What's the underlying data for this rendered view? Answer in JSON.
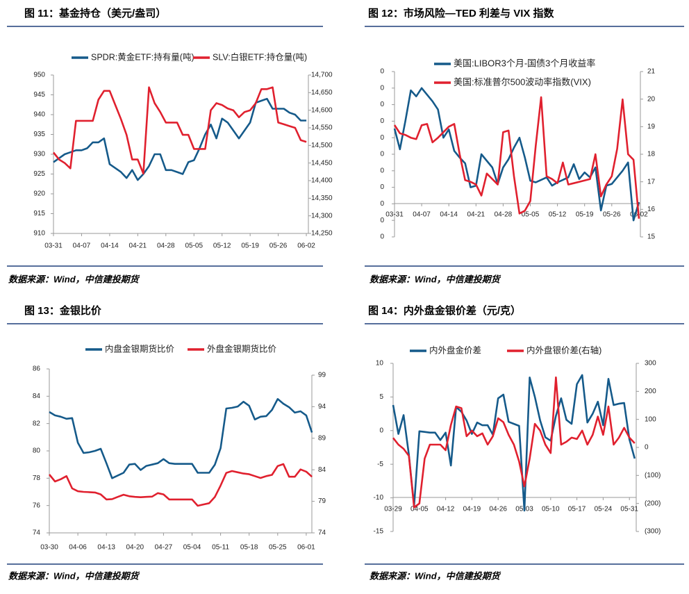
{
  "chart_data": [
    {
      "type": "line",
      "title": "图 11：基金持仓（美元/盎司）",
      "source": "数据来源：Wind，中信建投期货",
      "categories": [
        "03-31",
        null,
        null,
        null,
        null,
        "04-07",
        null,
        null,
        null,
        null,
        "04-14",
        null,
        null,
        null,
        null,
        "04-21",
        null,
        null,
        null,
        null,
        "04-28",
        null,
        null,
        null,
        null,
        "05-05",
        null,
        null,
        null,
        null,
        "05-12",
        null,
        null,
        null,
        null,
        "05-19",
        null,
        null,
        null,
        null,
        "05-26",
        null,
        null,
        null,
        null,
        "06-02"
      ],
      "series": [
        {
          "name": "SPDR:黄金ETF:持有量(吨)",
          "color": "#155a8a",
          "values": [
            928,
            929,
            930,
            930.5,
            931,
            931,
            931.5,
            933,
            933,
            934,
            927.5,
            926.5,
            925.5,
            924,
            926,
            923.5,
            925,
            927,
            930,
            930,
            926,
            926,
            925.5,
            925,
            928,
            928.5,
            931.5,
            935,
            937.5,
            934,
            939,
            938,
            936,
            934,
            936,
            938,
            943,
            943.5,
            944,
            941.5,
            941.5,
            941.5,
            940.5,
            940,
            938.5,
            938.5
          ]
        },
        {
          "name": "SLV:白银ETF:持仓量(吨)",
          "color": "#e0202e",
          "axis": "y2",
          "values": [
            14480,
            14460,
            14450,
            14435,
            14570,
            14570,
            14570,
            14570,
            14630,
            14655,
            14655,
            14615,
            14575,
            14530,
            14460,
            14460,
            14420,
            14665,
            14620,
            14595,
            14565,
            14565,
            14565,
            14530,
            14530,
            14490,
            14490,
            14490,
            14600,
            14620,
            14615,
            14605,
            14600,
            14580,
            14595,
            14600,
            14620,
            14660,
            14660,
            14665,
            14565,
            14560,
            14555,
            14550,
            14515,
            14510
          ]
        }
      ],
      "ylim": [
        910,
        950
      ],
      "yticks": [
        910,
        915,
        920,
        925,
        930,
        935,
        940,
        945,
        950
      ],
      "y2lim": [
        14250,
        14700
      ],
      "y2ticks": [
        {
          "value": 14250,
          "label": "14,250"
        },
        {
          "value": 14300,
          "label": "14,300"
        },
        {
          "value": 14350,
          "label": "14,350"
        },
        {
          "value": 14400,
          "label": "14,400"
        },
        {
          "value": 14450,
          "label": "14,450"
        },
        {
          "value": 14500,
          "label": "14,500"
        },
        {
          "value": 14550,
          "label": "14,550"
        },
        {
          "value": 14600,
          "label": "14,600"
        },
        {
          "value": 14650,
          "label": "14,650"
        },
        {
          "value": 14700,
          "label": "14,700"
        }
      ]
    },
    {
      "type": "line",
      "title": "图 12：市场风险—TED 利差与 VIX 指数",
      "source": "数据来源：Wind，中信建投期货",
      "categories": [
        "03-31",
        null,
        null,
        null,
        null,
        "04-07",
        null,
        null,
        null,
        null,
        "04-14",
        null,
        null,
        null,
        null,
        "04-21",
        null,
        null,
        null,
        null,
        "04-28",
        null,
        null,
        null,
        null,
        "05-05",
        null,
        null,
        null,
        null,
        "05-12",
        null,
        null,
        null,
        null,
        "05-19",
        null,
        null,
        null,
        null,
        "05-26",
        null,
        null,
        null,
        null,
        "06-02"
      ],
      "series": [
        {
          "name": "美国:LIBOR3个月-国债3个月收益率",
          "color": "#155a8a",
          "values": [
            0.655,
            0.53,
            0.7,
            0.886,
            0.85,
            0.9,
            0.86,
            0.82,
            0.77,
            0.6,
            0.65,
            0.52,
            0.48,
            0.445,
            0.3,
            0.31,
            0.5,
            0.46,
            0.42,
            0.32,
            0.42,
            0.47,
            0.54,
            0.6,
            0.48,
            0.34,
            0.33,
            0.345,
            0.36,
            0.31,
            0.33,
            0.345,
            0.36,
            0.44,
            0.35,
            0.39,
            0.36,
            0.42,
            0.16,
            0.31,
            0.32,
            0.36,
            0.4,
            0.45,
            0.1,
            0.21
          ]
        },
        {
          "name": "美国:标准普尔500波动率指数(VIX)",
          "color": "#e0202e",
          "axis": "y2",
          "values": [
            19.06,
            18.76,
            18.7,
            18.6,
            18.55,
            19.05,
            19.1,
            18.43,
            18.6,
            18.8,
            19.0,
            19.1,
            18.0,
            17.06,
            17.0,
            16.9,
            16.5,
            17.3,
            17.1,
            16.9,
            18.8,
            18.86,
            17.2,
            15.85,
            15.95,
            16.3,
            18.3,
            20.07,
            17.2,
            17.1,
            16.95,
            17.7,
            16.9,
            16.95,
            17.0,
            17.05,
            17.1,
            18.0,
            16.47,
            16.9,
            17.2,
            18.2,
            19.99,
            18.0,
            17.8,
            15.66
          ]
        }
      ],
      "ylim": [
        0,
        1.0
      ],
      "yticks": [
        {
          "value": 0,
          "label": "0"
        },
        {
          "value": 0.1,
          "label": "0"
        },
        {
          "value": 0.2,
          "label": "0"
        },
        {
          "value": 0.3,
          "label": "0"
        },
        {
          "value": 0.4,
          "label": "0"
        },
        {
          "value": 0.5,
          "label": "0"
        },
        {
          "value": 0.6,
          "label": "0"
        },
        {
          "value": 0.7,
          "label": "0"
        },
        {
          "value": 0.8,
          "label": "0"
        },
        {
          "value": 0.9,
          "label": "0"
        },
        {
          "value": 1.0,
          "label": "0"
        }
      ],
      "y2lim": [
        15,
        21
      ],
      "y2ticks": [
        15,
        16,
        17,
        18,
        19,
        20,
        21
      ]
    },
    {
      "type": "line",
      "title": "图 13：金银比价",
      "source": "数据来源：Wind，中信建投期货",
      "categories": [
        "03-30",
        null,
        null,
        null,
        null,
        "04-06",
        null,
        null,
        null,
        null,
        "04-13",
        null,
        null,
        null,
        null,
        "04-20",
        null,
        null,
        null,
        null,
        "04-27",
        null,
        null,
        null,
        null,
        "05-04",
        null,
        null,
        null,
        null,
        "05-11",
        null,
        null,
        null,
        null,
        "05-18",
        null,
        null,
        null,
        null,
        "05-25",
        null,
        null,
        null,
        null,
        "06-01",
        null
      ],
      "series": [
        {
          "name": "内盘金银期货比价",
          "color": "#155a8a",
          "values": [
            82.85,
            82.6,
            82.5,
            82.35,
            82.4,
            80.6,
            79.85,
            79.9,
            80.0,
            80.15,
            79.1,
            78.0,
            78.2,
            78.4,
            79.0,
            79.05,
            78.6,
            78.9,
            79.0,
            79.1,
            79.4,
            79.1,
            79.05,
            79.05,
            79.05,
            79.05,
            78.4,
            78.4,
            78.4,
            79.0,
            80.2,
            83.1,
            83.15,
            83.25,
            83.6,
            83.3,
            82.3,
            82.5,
            82.55,
            83.0,
            83.8,
            83.45,
            83.2,
            82.8,
            82.9,
            82.6,
            81.35
          ]
        },
        {
          "name": "外盘金银期货比价",
          "color": "#e0202e",
          "axis": "y2",
          "values": [
            83.25,
            82.15,
            82.5,
            83.0,
            81.05,
            80.6,
            80.5,
            80.45,
            80.4,
            80.1,
            79.3,
            79.35,
            79.7,
            80.05,
            79.8,
            79.7,
            79.65,
            79.7,
            79.75,
            80.3,
            80.1,
            79.3,
            79.3,
            79.3,
            79.3,
            79.3,
            78.3,
            78.5,
            78.7,
            79.7,
            81.5,
            83.5,
            83.8,
            83.6,
            83.4,
            83.3,
            83.0,
            82.7,
            83.0,
            83.2,
            84.6,
            84.9,
            82.9,
            82.9,
            84.05,
            83.7,
            82.9
          ]
        }
      ],
      "ylim": [
        74,
        86
      ],
      "yticks": [
        74,
        76,
        78,
        80,
        82,
        84,
        86
      ],
      "y2lim": [
        74,
        99
      ],
      "y2ticks": [
        74,
        79,
        84,
        89,
        94,
        99
      ]
    },
    {
      "type": "line",
      "title": "图 14：内外盘金银价差（元/克）",
      "source": "数据来源：Wind，中信建投期货",
      "categories": [
        "03-29",
        null,
        null,
        null,
        null,
        "04-05",
        null,
        null,
        null,
        null,
        "04-12",
        null,
        null,
        null,
        null,
        "04-19",
        null,
        null,
        null,
        null,
        "04-26",
        null,
        null,
        null,
        null,
        "05-03",
        null,
        null,
        null,
        null,
        "05-10",
        null,
        null,
        null,
        null,
        "05-17",
        null,
        null,
        null,
        null,
        "05-24",
        null,
        null,
        null,
        null,
        "05-31",
        null
      ],
      "series": [
        {
          "name": "内外盘金价差",
          "color": "#155a8a",
          "values": [
            3.8,
            -0.5,
            2.3,
            -3.6,
            -11.2,
            -0.1,
            -0.2,
            -0.3,
            -0.3,
            -1.4,
            -0.3,
            -5.2,
            3.5,
            2.8,
            1.5,
            -0.5,
            1.2,
            0.8,
            0.8,
            -0.6,
            4.8,
            5.35,
            1.3,
            1.0,
            0.7,
            -11.9,
            7.9,
            5.0,
            1.5,
            -1.0,
            -1.5,
            2.2,
            4.8,
            1.6,
            1.0,
            6.9,
            8.25,
            1.2,
            2.5,
            4.3,
            0.8,
            7.7,
            3.8,
            4.0,
            4.1,
            -1.3,
            -4.15
          ]
        },
        {
          "name": "内外盘银价差(右轴)",
          "color": "#e0202e",
          "axis": "y2",
          "values": [
            34,
            10,
            -5,
            -30,
            -214,
            -200,
            -40,
            10,
            10,
            10,
            -10,
            80,
            146,
            140,
            40,
            60,
            40,
            50,
            10,
            40,
            104,
            90,
            45,
            10,
            -50,
            -139,
            -40,
            84,
            60,
            10,
            -20,
            250,
            10,
            20,
            35,
            30,
            60,
            10,
            45,
            110,
            45,
            146,
            10,
            35,
            70,
            35,
            15
          ]
        }
      ],
      "ylim": [
        -15,
        10
      ],
      "yticks": [
        -15,
        -10,
        -5,
        0,
        5,
        10
      ],
      "y2lim": [
        -300,
        300
      ],
      "y2ticks": [
        {
          "value": -300,
          "label": "(300)"
        },
        {
          "value": -200,
          "label": "(200)"
        },
        {
          "value": -100,
          "label": "(100)"
        },
        0,
        100,
        200,
        300
      ],
      "y2_negative_color": "#e0202e"
    }
  ]
}
